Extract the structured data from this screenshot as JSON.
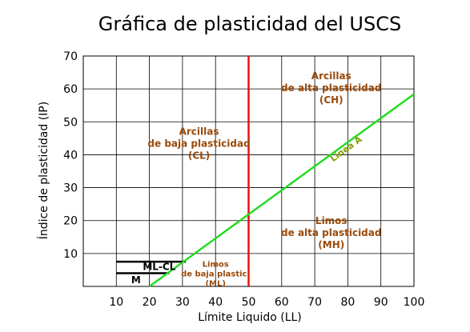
{
  "chart_data": {
    "type": "line",
    "title": "Gráfica de plasticidad del USCS",
    "xlabel": "Límite Liquido (LL)",
    "ylabel": "Índice de plasticidad (IP)",
    "xlim": [
      0,
      100
    ],
    "ylim": [
      0,
      70
    ],
    "x_ticks": [
      10,
      20,
      30,
      40,
      50,
      60,
      70,
      80,
      90,
      100
    ],
    "y_ticks": [
      10,
      20,
      30,
      40,
      50,
      60,
      70
    ],
    "grid": true,
    "series": [
      {
        "name": "Linea A",
        "color": "#22dd22",
        "x": [
          20,
          100
        ],
        "y": [
          0,
          58.4
        ]
      }
    ],
    "vertical_lines": [
      {
        "x": 50,
        "color": "#ee1111"
      }
    ],
    "horizontal_segments": [
      {
        "x": [
          10,
          31
        ],
        "y": 7.5,
        "color": "#000000"
      },
      {
        "x": [
          10,
          26
        ],
        "y": 4.0,
        "color": "#000000"
      }
    ],
    "zones": [
      {
        "lines": [
          "Arcillas",
          "de alta plasticidad",
          "(CH)"
        ],
        "x": 75,
        "y": 63,
        "color": "#9a4a0a"
      },
      {
        "lines": [
          "Arcillas",
          "de baja plasticidad",
          "(CL)"
        ],
        "x": 35,
        "y": 46,
        "color": "#9a4a0a"
      },
      {
        "lines": [
          "Limos",
          "de alta plasticidad",
          "(MH)"
        ],
        "x": 75,
        "y": 19,
        "color": "#9a4a0a"
      },
      {
        "lines": [
          "Limos",
          "de baja plastic.",
          "(ML)"
        ],
        "x": 40,
        "y": 6,
        "color": "#9a4a0a",
        "small": true
      },
      {
        "lines": [
          "ML-CL"
        ],
        "x": 18,
        "y": 5,
        "color": "#000000"
      },
      {
        "lines": [
          "M"
        ],
        "x": 14.5,
        "y": 1,
        "color": "#000000"
      }
    ],
    "line_a_label": "Linea A"
  }
}
